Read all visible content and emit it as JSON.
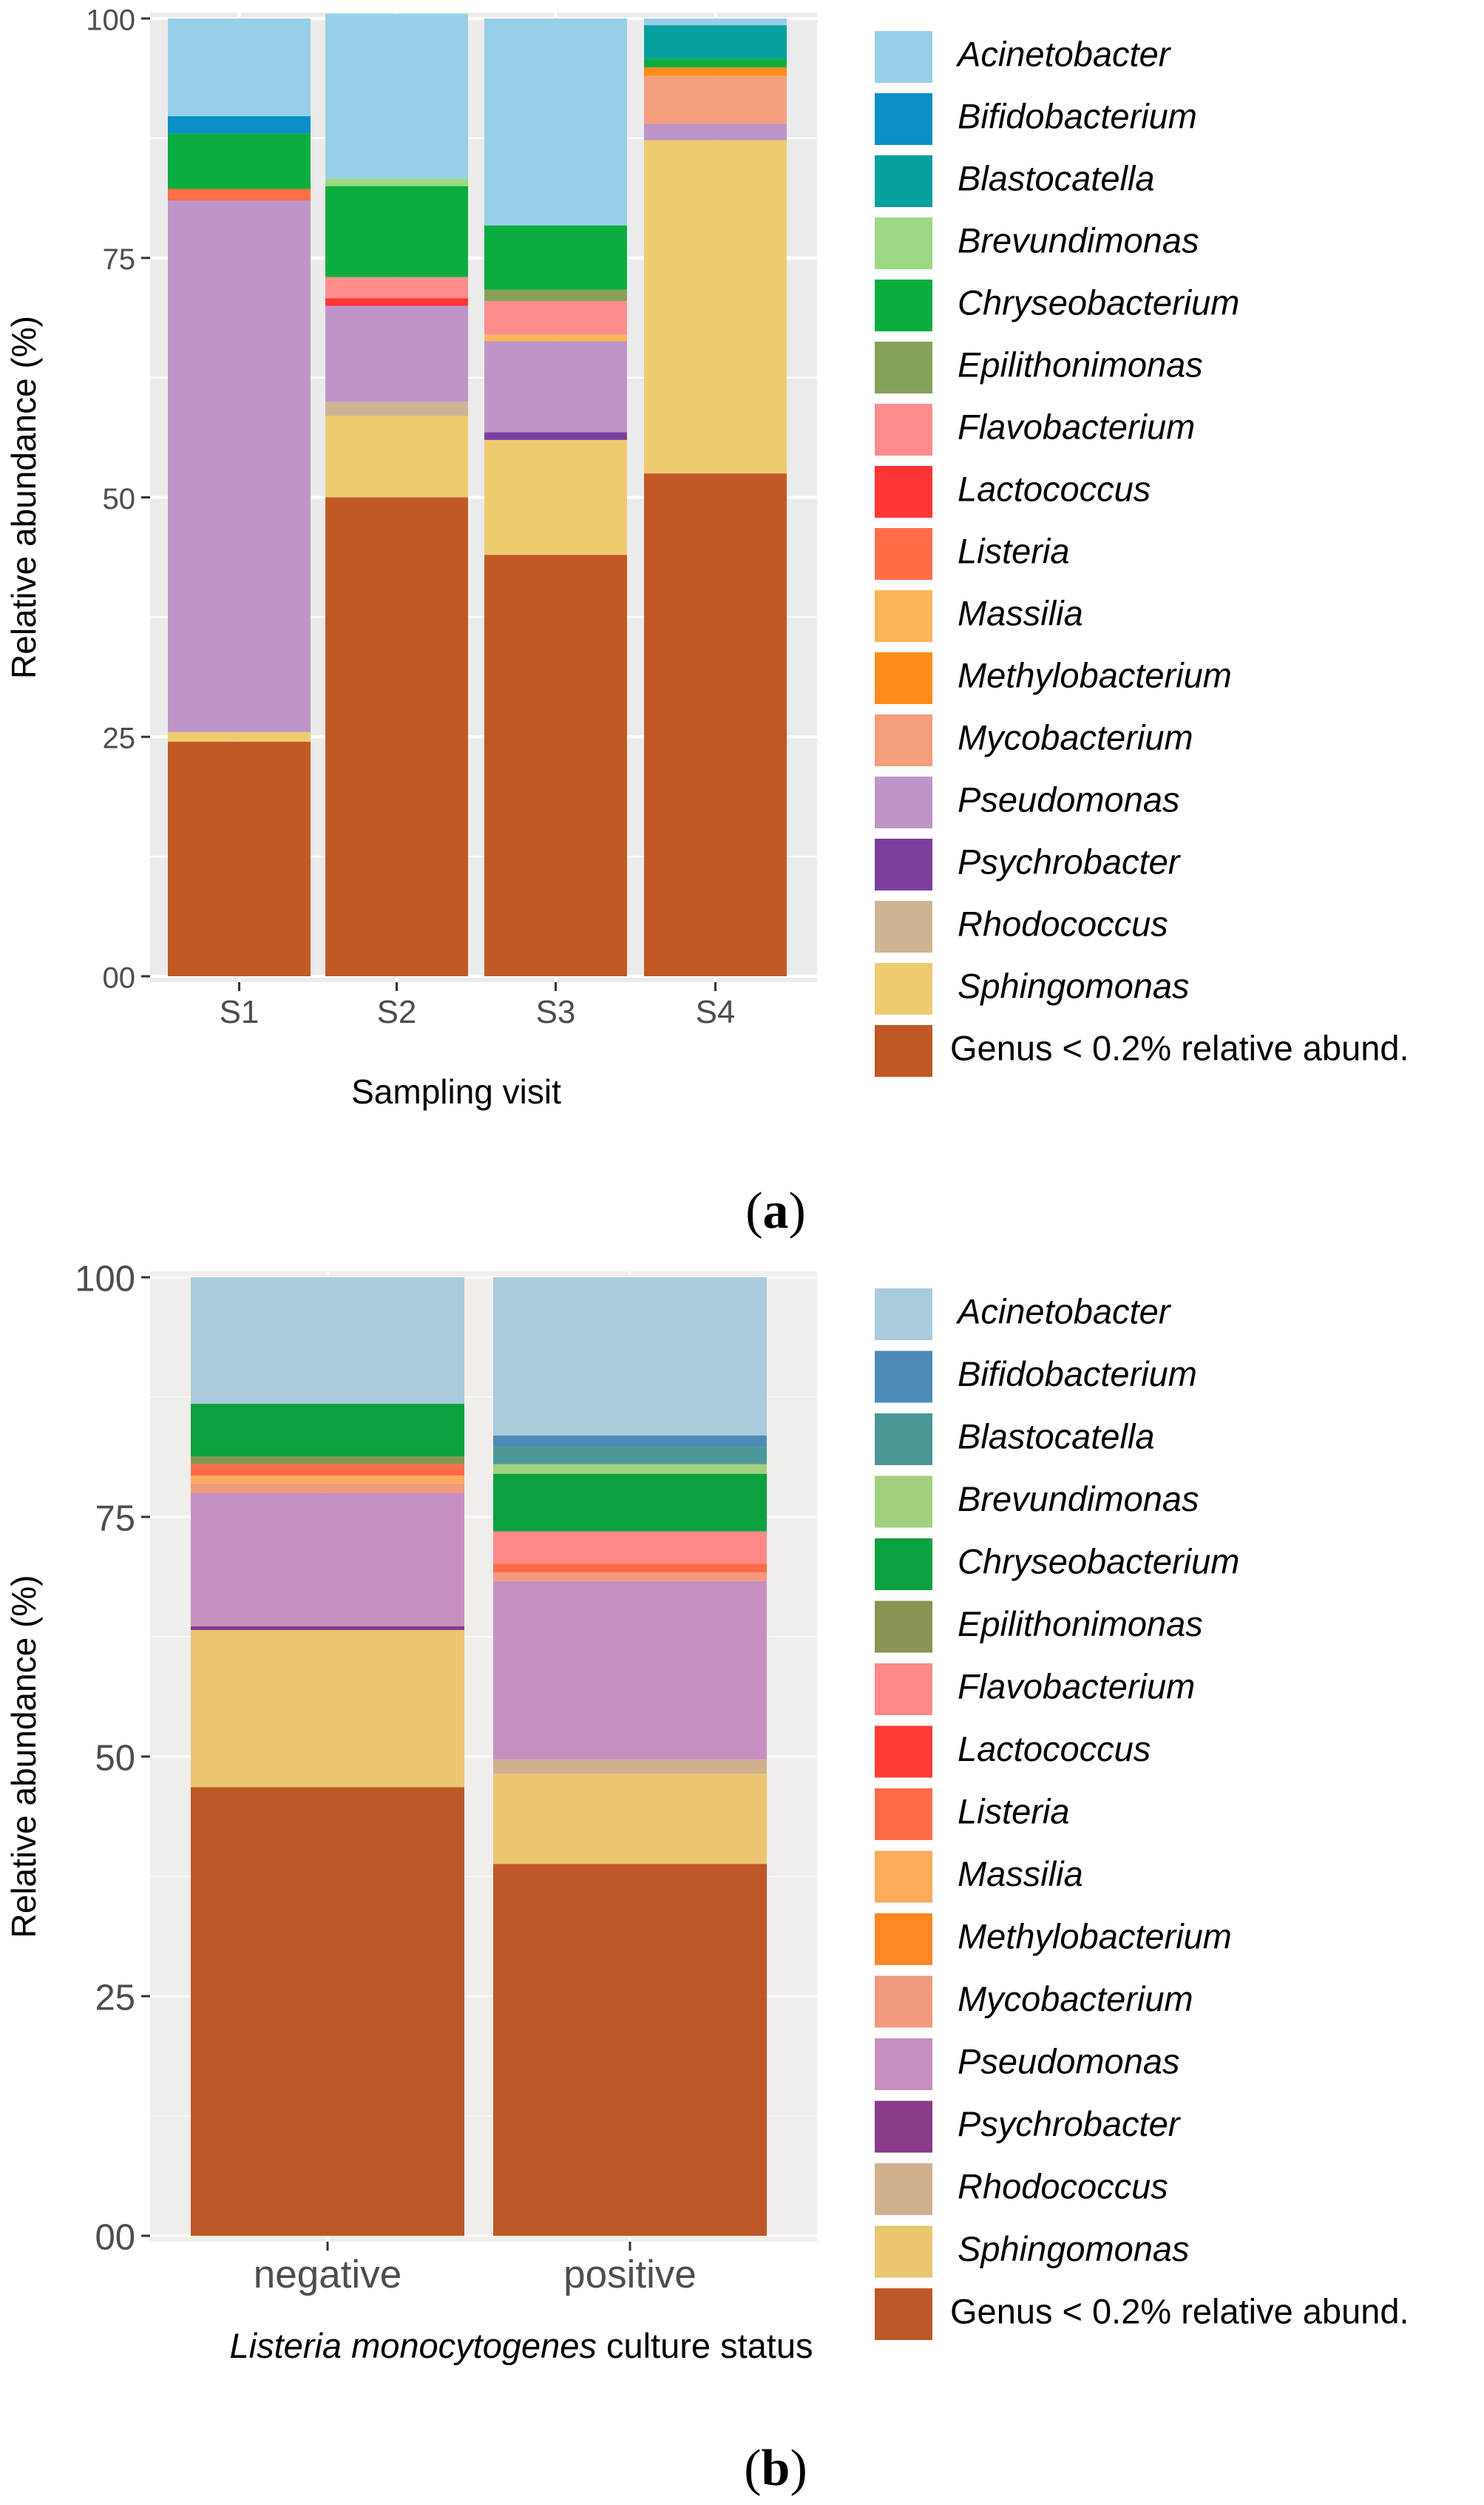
{
  "chart_data": [
    {
      "type": "bar",
      "stacked": true,
      "panel_label": "a",
      "categories": [
        "S1",
        "S2",
        "S3",
        "S4"
      ],
      "xlabel": "Sampling visit",
      "ylabel": "Relative abundance (%)",
      "ylim": [
        0,
        100
      ],
      "y_ticks": [
        "00",
        "25",
        "50",
        "75",
        "100"
      ],
      "grid": true,
      "legend_position": "right",
      "series": [
        {
          "name": "Genus < 0.2% relative abund.",
          "italic": false,
          "color": "#C25825",
          "values": [
            24.5,
            50.0,
            44.0,
            52.5
          ]
        },
        {
          "name": "Sphingomonas",
          "italic": true,
          "color": "#EFCB70",
          "values": [
            1.0,
            8.5,
            12.0,
            34.8
          ]
        },
        {
          "name": "Rhodococcus",
          "italic": true,
          "color": "#CDB594",
          "values": [
            0,
            1.5,
            0,
            0
          ]
        },
        {
          "name": "Psychrobacter",
          "italic": true,
          "color": "#7B3E9D",
          "values": [
            0,
            0,
            0.8,
            0
          ]
        },
        {
          "name": "Pseudomonas",
          "italic": true,
          "color": "#BE95C8",
          "values": [
            55.5,
            10.0,
            9.5,
            1.7
          ]
        },
        {
          "name": "Mycobacterium",
          "italic": true,
          "color": "#F49E7D",
          "values": [
            0,
            0,
            0,
            5.0
          ]
        },
        {
          "name": "Methylobacterium",
          "italic": true,
          "color": "#FF8C1A",
          "values": [
            0,
            0,
            0,
            0.9
          ]
        },
        {
          "name": "Massilia",
          "italic": true,
          "color": "#FDB55A",
          "values": [
            0,
            0,
            0.7,
            0
          ]
        },
        {
          "name": "Listeria",
          "italic": true,
          "color": "#FF6E47",
          "values": [
            1.2,
            0,
            0,
            0
          ]
        },
        {
          "name": "Lactococcus",
          "italic": true,
          "color": "#FF3535",
          "values": [
            0,
            0.8,
            0,
            0
          ]
        },
        {
          "name": "Flavobacterium",
          "italic": true,
          "color": "#FF8C8C",
          "values": [
            0,
            2.2,
            3.5,
            0
          ]
        },
        {
          "name": "Epilithonimonas",
          "italic": true,
          "color": "#86A25A",
          "values": [
            0,
            0,
            1.2,
            0
          ]
        },
        {
          "name": "Chryseobacterium",
          "italic": true,
          "color": "#0BAD3F",
          "values": [
            5.8,
            9.5,
            6.7,
            0.9
          ]
        },
        {
          "name": "Brevundimonas",
          "italic": true,
          "color": "#9DD884",
          "values": [
            0,
            0.8,
            0,
            0
          ]
        },
        {
          "name": "Blastocatella",
          "italic": true,
          "color": "#06A09F",
          "values": [
            0,
            0,
            0,
            3.5
          ]
        },
        {
          "name": "Bifidobacterium",
          "italic": true,
          "color": "#0B8FC6",
          "values": [
            1.8,
            0,
            0,
            0
          ]
        },
        {
          "name": "Acinetobacter",
          "italic": true,
          "color": "#97CFE8",
          "values": [
            10.2,
            17.2,
            21.6,
            0.7
          ]
        }
      ]
    },
    {
      "type": "bar",
      "stacked": true,
      "panel_label": "b",
      "categories": [
        "negative",
        "positive"
      ],
      "xlabel_italic": "Listeria monocytogenes",
      "xlabel_rest": " culture status",
      "ylabel": "Relative abundance (%)",
      "ylim": [
        0,
        100
      ],
      "y_ticks": [
        "00",
        "25",
        "50",
        "75",
        "100"
      ],
      "grid": true,
      "legend_position": "right",
      "series": [
        {
          "name": "Genus < 0.2% relative abund.",
          "italic": false,
          "color": "#BE5828",
          "values": [
            46.8,
            38.8
          ]
        },
        {
          "name": "Sphingomonas",
          "italic": true,
          "color": "#EBC570",
          "values": [
            16.4,
            9.4
          ]
        },
        {
          "name": "Rhodococcus",
          "italic": true,
          "color": "#D1B090",
          "values": [
            0,
            1.5
          ]
        },
        {
          "name": "Psychrobacter",
          "italic": true,
          "color": "#863C87",
          "values": [
            0.4,
            0
          ]
        },
        {
          "name": "Pseudomonas",
          "italic": true,
          "color": "#C78FC0",
          "values": [
            13.9,
            18.6
          ]
        },
        {
          "name": "Mycobacterium",
          "italic": true,
          "color": "#F29A7D",
          "values": [
            1.0,
            0.9
          ]
        },
        {
          "name": "Methylobacterium",
          "italic": true,
          "color": "#FF8726",
          "values": [
            0,
            0
          ]
        },
        {
          "name": "Massilia",
          "italic": true,
          "color": "#FCAC5C",
          "values": [
            0.8,
            0
          ]
        },
        {
          "name": "Listeria",
          "italic": true,
          "color": "#FF6B49",
          "values": [
            1.2,
            0.9
          ]
        },
        {
          "name": "Lactococcus",
          "italic": true,
          "color": "#FF3B35",
          "values": [
            0,
            0
          ]
        },
        {
          "name": "Flavobacterium",
          "italic": true,
          "color": "#FF8888",
          "values": [
            0,
            3.4
          ]
        },
        {
          "name": "Epilithonimonas",
          "italic": true,
          "color": "#899454",
          "values": [
            0.8,
            0
          ]
        },
        {
          "name": "Chryseobacterium",
          "italic": true,
          "color": "#0BA13E",
          "values": [
            5.5,
            6.0
          ]
        },
        {
          "name": "Brevundimonas",
          "italic": true,
          "color": "#A1D07E",
          "values": [
            0,
            1.0
          ]
        },
        {
          "name": "Blastocatella",
          "italic": true,
          "color": "#4A9898",
          "values": [
            0,
            1.8
          ]
        },
        {
          "name": "Bifidobacterium",
          "italic": true,
          "color": "#4D8BB7",
          "values": [
            0,
            1.2
          ]
        },
        {
          "name": "Acinetobacter",
          "italic": true,
          "color": "#A9CBDB",
          "values": [
            13.2,
            16.5
          ]
        }
      ]
    }
  ]
}
